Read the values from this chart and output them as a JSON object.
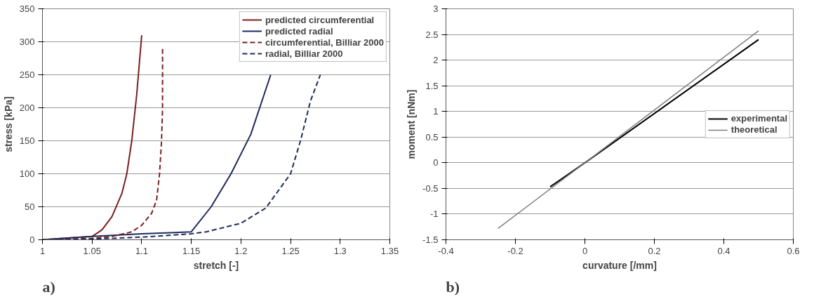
{
  "chart_data": [
    {
      "type": "line",
      "xlabel": "stretch [-]",
      "ylabel": "stress [kPa]",
      "xlim": [
        1,
        1.35
      ],
      "ylim": [
        0,
        350
      ],
      "xticks": [
        1,
        1.05,
        1.1,
        1.15,
        1.2,
        1.25,
        1.3,
        1.35
      ],
      "yticks": [
        0,
        50,
        100,
        150,
        200,
        250,
        300,
        350
      ],
      "grid": "y",
      "legend": "top right",
      "annotations": [
        "a)"
      ],
      "series": [
        {
          "name": "predicted circumferential",
          "color": "#7b1f1f",
          "line_style": "solid",
          "x": [
            1,
            1.02,
            1.04,
            1.05,
            1.06,
            1.07,
            1.08,
            1.085,
            1.09,
            1.095,
            1.1
          ],
          "values": [
            0,
            2,
            4,
            5,
            15,
            35,
            70,
            100,
            150,
            220,
            310
          ]
        },
        {
          "name": "predicted radial",
          "color": "#1f2a5c",
          "line_style": "solid",
          "x": [
            1,
            1.05,
            1.1,
            1.15,
            1.17,
            1.19,
            1.21,
            1.23
          ],
          "values": [
            0,
            5,
            9,
            12,
            50,
            100,
            160,
            250
          ]
        },
        {
          "name": "circumferential, Billiar 2000",
          "color": "#7b1f1f",
          "line_style": "dashed",
          "x": [
            1,
            1.05,
            1.07,
            1.09,
            1.1,
            1.11,
            1.115,
            1.118,
            1.12,
            1.121,
            1.121
          ],
          "values": [
            0,
            2,
            5,
            12,
            22,
            40,
            60,
            100,
            150,
            200,
            290
          ]
        },
        {
          "name": "radial, Billiar 2000",
          "color": "#1f2a5c",
          "line_style": "dashed",
          "x": [
            1,
            1.05,
            1.1,
            1.15,
            1.165,
            1.2,
            1.225,
            1.25,
            1.26,
            1.27,
            1.28
          ],
          "values": [
            0,
            1,
            4,
            9,
            12,
            25,
            48,
            100,
            150,
            210,
            250
          ]
        }
      ]
    },
    {
      "type": "line",
      "xlabel": "curvature [/mm]",
      "ylabel": "moment [nNm]",
      "xlim": [
        -0.4,
        0.6
      ],
      "ylim": [
        -1.5,
        3
      ],
      "xticks": [
        -0.4,
        -0.2,
        0,
        0.2,
        0.4,
        0.6
      ],
      "yticks": [
        -1.5,
        -1,
        -0.5,
        0,
        0.5,
        1,
        1.5,
        2,
        2.5,
        3
      ],
      "grid": "y",
      "legend": "right",
      "annotations": [
        "b)"
      ],
      "series": [
        {
          "name": "experimental",
          "color": "#000000",
          "line_style": "solid",
          "x": [
            -0.1,
            0,
            0.5
          ],
          "values": [
            -0.47,
            0,
            2.4
          ]
        },
        {
          "name": "theoretical",
          "color": "#808080",
          "line_style": "solid",
          "x": [
            -0.25,
            0,
            0.5
          ],
          "values": [
            -1.28,
            0,
            2.57
          ]
        }
      ]
    }
  ]
}
